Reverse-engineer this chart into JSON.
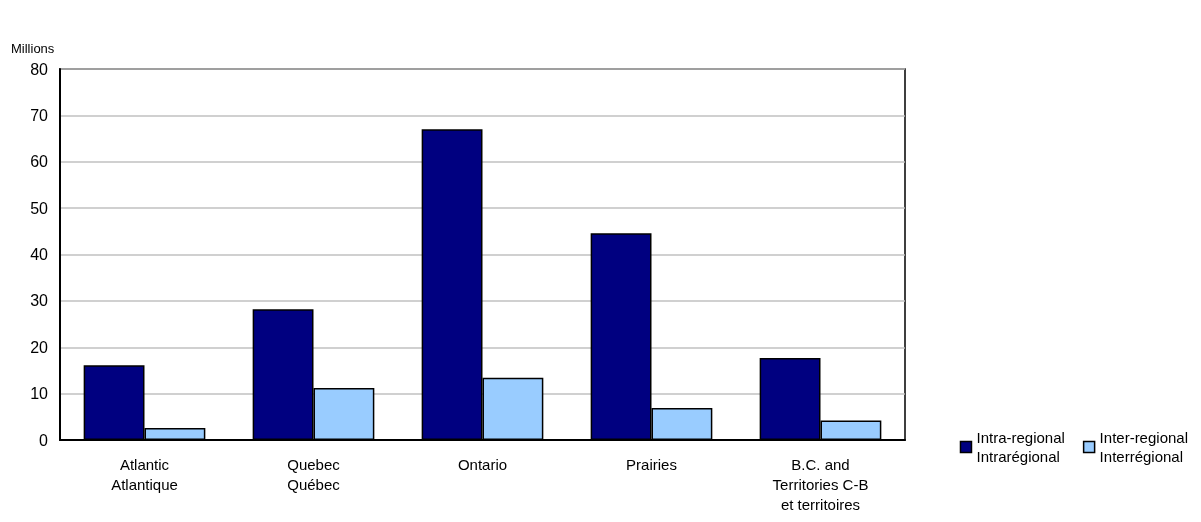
{
  "chart_data": {
    "type": "bar",
    "ylabel": "Millions",
    "categories": [
      "Atlantic\nAtlantique",
      "Quebec\nQuébec",
      "Ontario",
      "Prairies",
      "B.C. and\nTerritories C-B\net territoires"
    ],
    "series": [
      {
        "name": "Intra-regional\nIntrarégional",
        "color": "#000080",
        "values": [
          16.1,
          28.2,
          67.0,
          44.6,
          17.7
        ]
      },
      {
        "name": "Inter-regional\nInterrégional",
        "color": "#99ccff",
        "values": [
          2.6,
          11.2,
          13.4,
          6.9,
          4.2
        ]
      }
    ],
    "ylim": [
      0,
      80
    ],
    "yticks": [
      0,
      10,
      20,
      30,
      40,
      50,
      60,
      70,
      80
    ],
    "grid": "y",
    "legend": "right"
  }
}
